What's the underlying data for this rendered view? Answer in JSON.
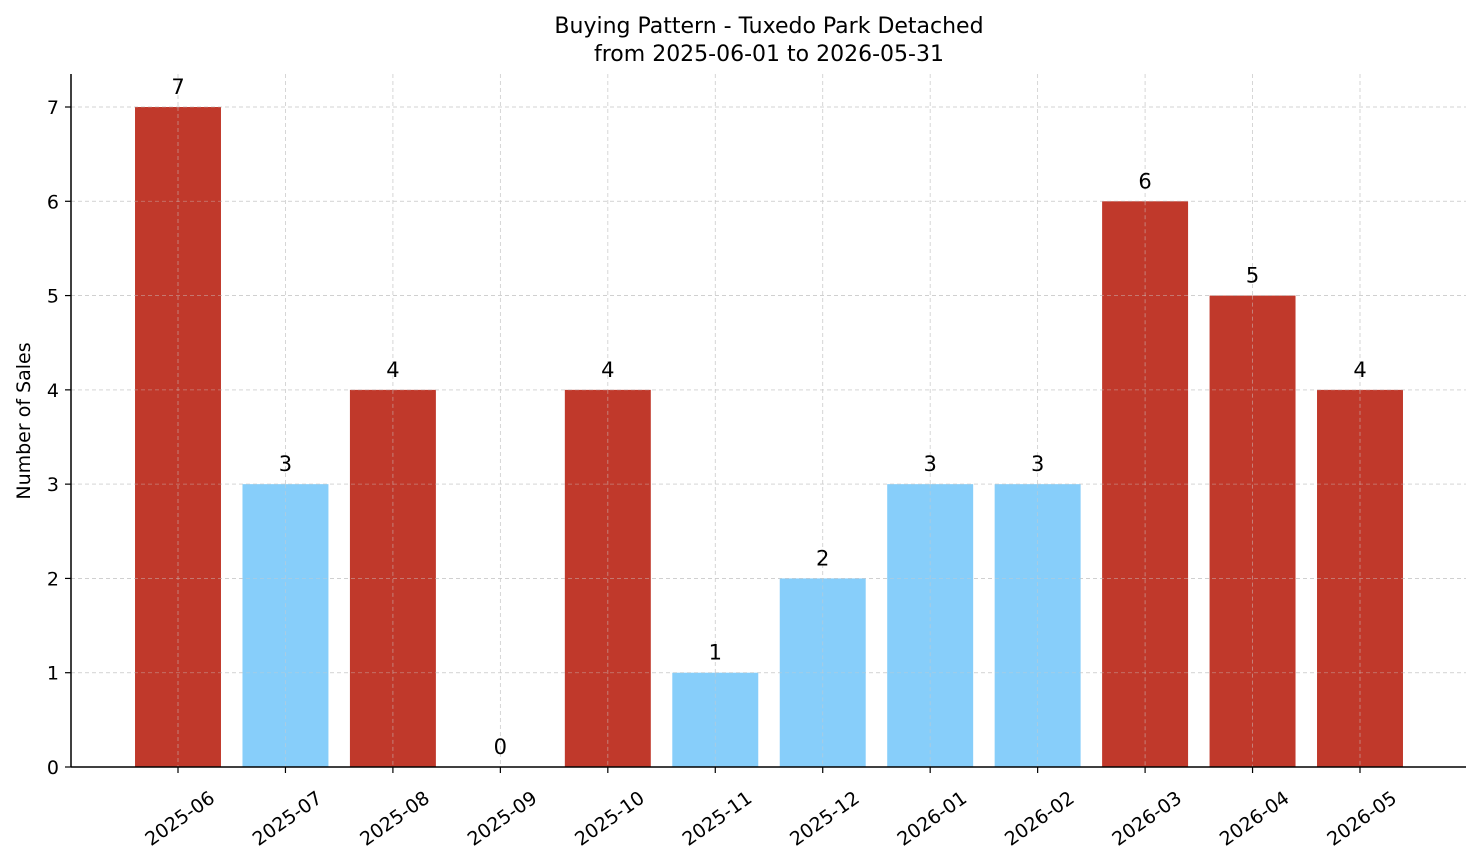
{
  "chart_data": {
    "type": "bar",
    "title": "Buying Pattern - Tuxedo Park Detached",
    "subtitle": "from 2025-06-01 to 2026-05-31",
    "xlabel": "",
    "ylabel": "Number of Sales",
    "categories": [
      "2025-06",
      "2025-07",
      "2025-08",
      "2025-09",
      "2025-10",
      "2025-11",
      "2025-12",
      "2026-01",
      "2026-02",
      "2026-03",
      "2026-04",
      "2026-05"
    ],
    "values": [
      7,
      3,
      4,
      0,
      4,
      1,
      2,
      3,
      3,
      6,
      5,
      4
    ],
    "bar_colors": [
      "#c0392b",
      "#87cefa",
      "#c0392b",
      "#c0392b",
      "#c0392b",
      "#87cefa",
      "#87cefa",
      "#87cefa",
      "#87cefa",
      "#c0392b",
      "#c0392b",
      "#c0392b"
    ],
    "ylim": [
      0,
      7.35
    ],
    "yticks": [
      0,
      1,
      2,
      3,
      4,
      5,
      6,
      7
    ],
    "grid": true,
    "legend": "none"
  }
}
